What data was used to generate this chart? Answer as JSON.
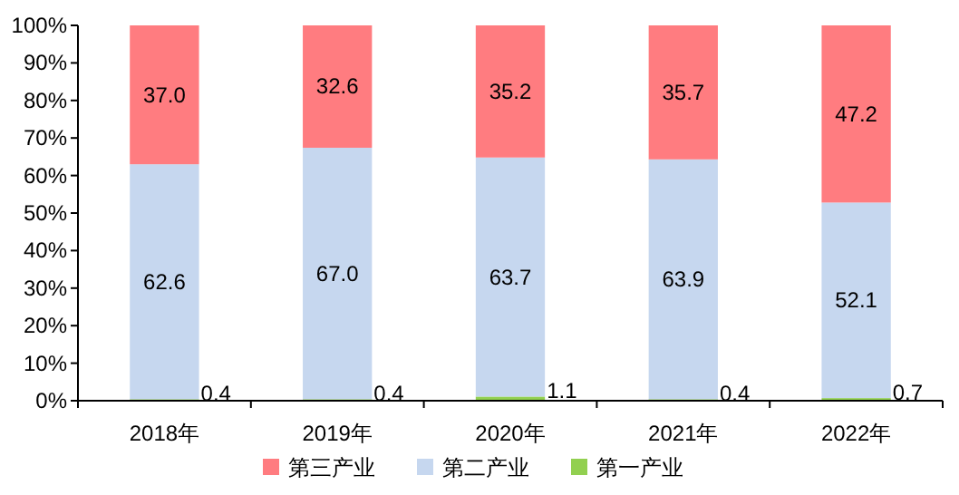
{
  "chart_data": {
    "type": "bar",
    "stacked": true,
    "legend": "bottom",
    "categories": [
      "2018年",
      "2019年",
      "2020年",
      "2021年",
      "2022年"
    ],
    "series": [
      {
        "name": "第一产业",
        "color": "#92d050",
        "values": [
          0.4,
          0.4,
          1.1,
          0.4,
          0.7
        ],
        "value_labels": [
          "0.4",
          "0.4",
          "1.1",
          "0.4",
          "0.7"
        ]
      },
      {
        "name": "第二产业",
        "color": "#c6d7ef",
        "values": [
          62.6,
          67.0,
          63.7,
          63.9,
          52.1
        ],
        "value_labels": [
          "62.6",
          "67.0",
          "63.7",
          "63.9",
          "52.1"
        ]
      },
      {
        "name": "第三产业",
        "color": "#ff7c80",
        "values": [
          37.0,
          32.6,
          35.2,
          35.7,
          47.2
        ],
        "value_labels": [
          "37.0",
          "32.6",
          "35.2",
          "35.7",
          "47.2"
        ]
      }
    ],
    "ylim": [
      0,
      100
    ],
    "yticks": [
      {
        "value": 0,
        "label": "0%"
      },
      {
        "value": 10,
        "label": "10%"
      },
      {
        "value": 20,
        "label": "20%"
      },
      {
        "value": 30,
        "label": "30%"
      },
      {
        "value": 40,
        "label": "40%"
      },
      {
        "value": 50,
        "label": "50%"
      },
      {
        "value": 60,
        "label": "60%"
      },
      {
        "value": 70,
        "label": "70%"
      },
      {
        "value": 80,
        "label": "80%"
      },
      {
        "value": 90,
        "label": "90%"
      },
      {
        "value": 100,
        "label": "100%"
      }
    ]
  }
}
